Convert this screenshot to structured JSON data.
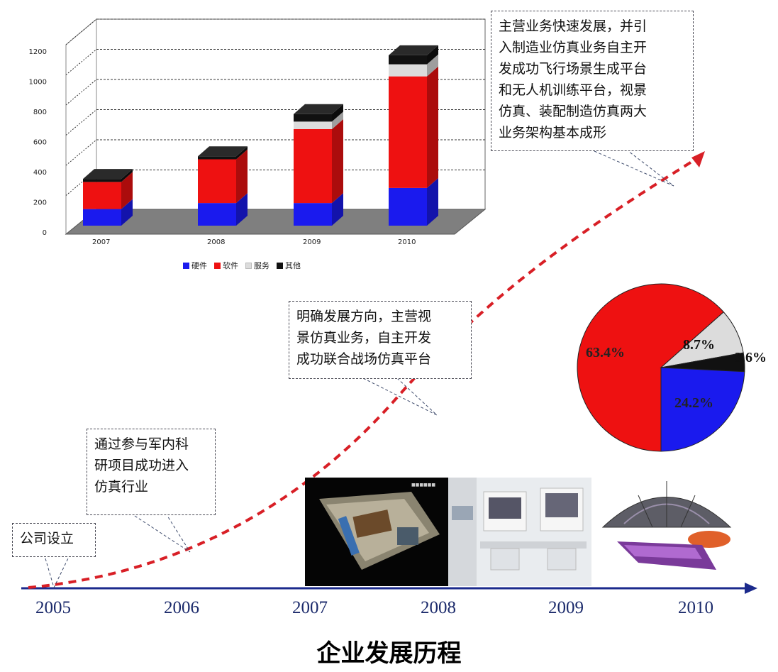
{
  "title": "企业发展历程",
  "years": [
    "2005",
    "2006",
    "2007",
    "2008",
    "2009",
    "2010"
  ],
  "callouts": {
    "founded": "公司设立",
    "entry": "通过参与军内科\n研项目成功进入\n仿真行业",
    "direction": "明确发展方向，主营视\n景仿真业务，自主开发\n成功联合战场仿真平台",
    "growth": "主营业务快速发展，并引\n入制造业仿真业务自主开\n发成功飞行场景生成平台\n和无人机训练平台，视景\n仿真、装配制造仿真两大\n业务架构基本成形"
  },
  "colors": {
    "hardware": "#1a1aee",
    "software": "#ee1111",
    "service": "#dcdcdc",
    "other": "#111111",
    "axis": "#1b2a8c",
    "curve": "#d81f26"
  },
  "chart_data": [
    {
      "type": "bar",
      "stacked": true,
      "categories": [
        "2007",
        "2008",
        "2009",
        "2010"
      ],
      "series": [
        {
          "name": "硬件",
          "values": [
            110,
            150,
            150,
            250
          ]
        },
        {
          "name": "软件",
          "values": [
            180,
            290,
            490,
            740
          ]
        },
        {
          "name": "服务",
          "values": [
            0,
            0,
            50,
            80
          ]
        },
        {
          "name": "其他",
          "values": [
            20,
            20,
            50,
            60
          ]
        }
      ],
      "yticks": [
        "0",
        "200",
        "400",
        "600",
        "800",
        "1000",
        "1200"
      ],
      "ylim": [
        0,
        1200
      ],
      "grid": true,
      "legend": "bottom"
    },
    {
      "type": "pie",
      "labels": [
        "软件",
        "服务",
        "其他",
        "硬件"
      ],
      "values": [
        63.4,
        8.7,
        3.6,
        24.2
      ],
      "value_labels": [
        "63.4%",
        "8.7%",
        "3.6%",
        "24.2%"
      ]
    }
  ]
}
